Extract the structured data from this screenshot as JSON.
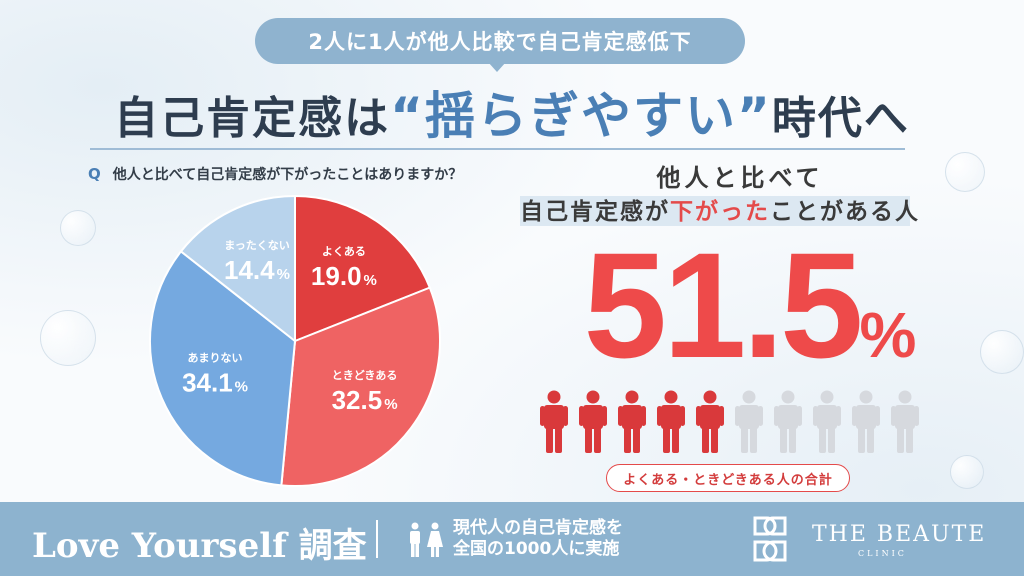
{
  "header": {
    "subtitle": "2人に1人が他人比較で自己肯定感低下",
    "title_part1": "自己肯定感は",
    "title_open_quote": "“",
    "title_highlight": "揺らぎやすい",
    "title_close_quote": "”",
    "title_part2": "時代へ"
  },
  "question": {
    "mark": "Q",
    "text": "他人と比べて自己肯定感が下がったことはありますか？"
  },
  "chart_data": {
    "type": "pie",
    "unit": "%",
    "slices": [
      {
        "label": "よくある",
        "value": 19.0,
        "value_text": "19.0",
        "color": "#e03e3e"
      },
      {
        "label": "ときどきある",
        "value": 32.5,
        "value_text": "32.5",
        "color": "#ef6363"
      },
      {
        "label": "あまりない",
        "value": 34.1,
        "value_text": "34.1",
        "color": "#75a9e0"
      },
      {
        "label": "まったくない",
        "value": 14.4,
        "value_text": "14.4",
        "color": "#b8d3ec"
      }
    ]
  },
  "summary": {
    "heading_line1": "他人と比べて",
    "heading_line2_pre": "自己肯定感が",
    "heading_line2_red": "下がった",
    "heading_line2_post": "ことがある人",
    "big_value": "51.5",
    "big_unit": "%",
    "people_total": 10,
    "people_highlighted": 5,
    "people_highlight_color": "#d9393b",
    "people_base_color": "#d6d9de",
    "note": "よくある・ときどきある人の合計"
  },
  "footer": {
    "survey_title": "Love Yourself 調査",
    "description_line1": "現代人の自己肯定感を",
    "description_line2": "全国の1000人に実施",
    "brand_name": "THE BEAUTE",
    "brand_sub": "CLINIC"
  }
}
